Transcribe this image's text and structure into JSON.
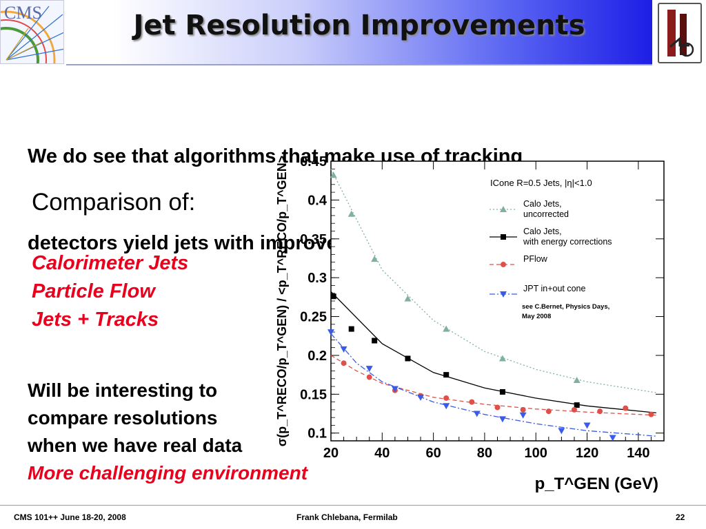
{
  "slide": {
    "title": "Jet Resolution Improvements",
    "intro": [
      "We do see that algorithms that make use of tracking",
      "detectors yield jets with improved  resolution"
    ],
    "comparison_heading": "Comparison of:",
    "compared_items": [
      "Calorimeter Jets",
      "Particle Flow",
      "Jets + Tracks"
    ],
    "closing_lines": [
      "Will be interesting to",
      "compare resolutions",
      "when we have real data"
    ],
    "closing_highlight": "More challenging environment",
    "footer": {
      "left": "CMS 101++  June 18-20, 2008",
      "center": "Frank Chlebana, Fermilab",
      "page": "22"
    },
    "logos": {
      "cms": "CMS"
    }
  },
  "colors": {
    "calo_raw": "#7fb0a0",
    "calo_corr": "#000000",
    "pflow": "#e0504a",
    "jpt": "#3a5be8",
    "red_text": "#e8001c"
  },
  "chart_data": {
    "type": "scatter",
    "title": "ICone R=0.5 Jets, |η|<1.0",
    "xlabel": "p_T^GEN (GeV)",
    "ylabel": "σ(p_T^RECO/p_T^GEN) / <p_T^RECO/p_T^GEN>",
    "xlim": [
      20,
      150
    ],
    "ylim": [
      0.09,
      0.45
    ],
    "xticks": [
      20,
      40,
      60,
      80,
      100,
      120,
      140
    ],
    "yticks": [
      0.1,
      0.15,
      0.2,
      0.25,
      0.3,
      0.35,
      0.4,
      0.45
    ],
    "legend_position": "top-right",
    "annotation": [
      "see C.Bernet, Physics Days,",
      "May 2008"
    ],
    "series": [
      {
        "name": "Calo Jets, uncorrected",
        "legend": [
          "Calo Jets,",
          "uncorrected"
        ],
        "marker": "triangle-up",
        "line": "dotted",
        "x": [
          21,
          28,
          37,
          50,
          65,
          87,
          116
        ],
        "y": [
          0.432,
          0.382,
          0.324,
          0.273,
          0.234,
          0.196,
          0.168
        ],
        "fit": [
          [
            20,
            0.44
          ],
          [
            40,
            0.31
          ],
          [
            60,
            0.245
          ],
          [
            80,
            0.205
          ],
          [
            100,
            0.182
          ],
          [
            120,
            0.166
          ],
          [
            147,
            0.152
          ]
        ]
      },
      {
        "name": "Calo Jets, with energy corrections",
        "legend": [
          "Calo Jets,",
          "with energy corrections"
        ],
        "marker": "square",
        "line": "solid",
        "x": [
          21,
          28,
          37,
          50,
          65,
          87,
          116
        ],
        "y": [
          0.276,
          0.234,
          0.219,
          0.196,
          0.175,
          0.153,
          0.136
        ],
        "fit": [
          [
            20,
            0.282
          ],
          [
            40,
            0.215
          ],
          [
            60,
            0.178
          ],
          [
            80,
            0.158
          ],
          [
            100,
            0.145
          ],
          [
            120,
            0.135
          ],
          [
            147,
            0.126
          ]
        ]
      },
      {
        "name": "PFlow",
        "legend": [
          "PFlow"
        ],
        "marker": "circle",
        "line": "dashed",
        "x": [
          25,
          35,
          45,
          55,
          65,
          75,
          85,
          95,
          105,
          115,
          125,
          135,
          145
        ],
        "y": [
          0.19,
          0.172,
          0.155,
          0.148,
          0.145,
          0.14,
          0.133,
          0.13,
          0.128,
          0.13,
          0.128,
          0.132,
          0.124
        ],
        "fit": [
          [
            20,
            0.2
          ],
          [
            30,
            0.18
          ],
          [
            40,
            0.164
          ],
          [
            60,
            0.146
          ],
          [
            80,
            0.137
          ],
          [
            100,
            0.131
          ],
          [
            120,
            0.127
          ],
          [
            147,
            0.123
          ]
        ]
      },
      {
        "name": "JPT in+out cone",
        "legend": [
          "JPT in+out cone"
        ],
        "marker": "triangle-down",
        "line": "dashdot",
        "x": [
          20,
          25,
          35,
          45,
          55,
          65,
          77,
          87,
          95,
          110,
          120,
          130
        ],
        "y": [
          0.23,
          0.208,
          0.183,
          0.157,
          0.146,
          0.135,
          0.125,
          0.118,
          0.123,
          0.103,
          0.11,
          0.094
        ],
        "fit": [
          [
            20,
            0.228
          ],
          [
            30,
            0.19
          ],
          [
            40,
            0.166
          ],
          [
            60,
            0.14
          ],
          [
            80,
            0.124
          ],
          [
            100,
            0.112
          ],
          [
            120,
            0.103
          ],
          [
            147,
            0.096
          ]
        ]
      }
    ]
  }
}
